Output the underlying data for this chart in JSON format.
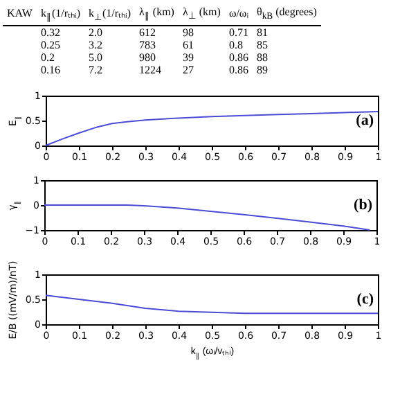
{
  "chart_data": [
    {
      "type": "other",
      "categories": [
        "KAW",
        "k$_{∥}$(1/rₜₕᵢ)",
        "k$_{⊥}$(1/rₜₕᵢ)",
        "λ$_{∥}$ (km)",
        "λ$_{⊥}$ (km)",
        "ω/ωᵢ",
        "θ$_{kB}$ (degrees)"
      ],
      "cell_labels": [
        [
          null,
          "0.32",
          "2.0",
          "612",
          "98",
          "0.71",
          "81"
        ],
        [
          null,
          "0.25",
          "3.2",
          "783",
          "61",
          "0.8",
          "85"
        ],
        [
          null,
          "0.2",
          "5.0",
          "980",
          "39",
          "0.86",
          "88"
        ],
        [
          null,
          "0.16",
          "7.2",
          "1224",
          "27",
          "0.86",
          "89"
        ]
      ]
    },
    {
      "type": "line",
      "ylabel": "E$_{∥}$",
      "annotations": [
        "(a)"
      ],
      "x": [
        0,
        0.05,
        0.1,
        0.15,
        0.2,
        0.25,
        0.3,
        0.4,
        0.5,
        0.6,
        0.7,
        0.8,
        0.9,
        1
      ],
      "series": [
        {
          "color": "#4b4bd6",
          "values": [
            0,
            0.13,
            0.25,
            0.36,
            0.44,
            0.48,
            0.51,
            0.55,
            0.58,
            0.6,
            0.62,
            0.64,
            0.66,
            0.68
          ]
        }
      ],
      "xlim": [
        0,
        1
      ],
      "xticks": [
        0,
        0.1,
        0.2,
        0.3,
        0.4,
        0.5,
        0.6,
        0.7,
        0.8,
        0.9,
        1
      ],
      "ylim": [
        0,
        1
      ],
      "yticks": [
        0,
        0.5,
        1
      ]
    },
    {
      "type": "line",
      "ylabel": "γ$_{∥}$",
      "annotations": [
        "(b)"
      ],
      "x": [
        0,
        0.1,
        0.2,
        0.25,
        0.3,
        0.4,
        0.5,
        0.6,
        0.7,
        0.8,
        0.9,
        0.98
      ],
      "series": [
        {
          "color": "#4b4bd6",
          "values": [
            0,
            0,
            0,
            0,
            -0.03,
            -0.12,
            -0.25,
            -0.38,
            -0.53,
            -0.68,
            -0.84,
            -1
          ]
        }
      ],
      "xlim": [
        0,
        1
      ],
      "xticks": [
        0,
        0.1,
        0.2,
        0.3,
        0.4,
        0.5,
        0.6,
        0.7,
        0.8,
        0.9,
        1
      ],
      "ylim": [
        -1,
        1
      ],
      "yticks": [
        -1,
        0,
        1
      ]
    },
    {
      "type": "line",
      "ylabel": "E/B ((mV/m)/nT)",
      "xlabel": "k$_{∥}$ (ωᵢ/vₜₕᵢ)",
      "annotations": [
        "(c)"
      ],
      "x": [
        0,
        0.1,
        0.2,
        0.3,
        0.4,
        0.5,
        0.6,
        0.7,
        0.8,
        0.9,
        1
      ],
      "series": [
        {
          "color": "#4b4bd6",
          "values": [
            0.58,
            0.5,
            0.42,
            0.32,
            0.26,
            0.24,
            0.22,
            0.22,
            0.22,
            0.22,
            0.22
          ]
        }
      ],
      "xlim": [
        0,
        1
      ],
      "xticks": [
        0,
        0.1,
        0.2,
        0.3,
        0.4,
        0.5,
        0.6,
        0.7,
        0.8,
        0.9,
        1
      ],
      "ylim": [
        0,
        1
      ],
      "yticks": [
        0,
        0.5,
        1
      ]
    }
  ]
}
